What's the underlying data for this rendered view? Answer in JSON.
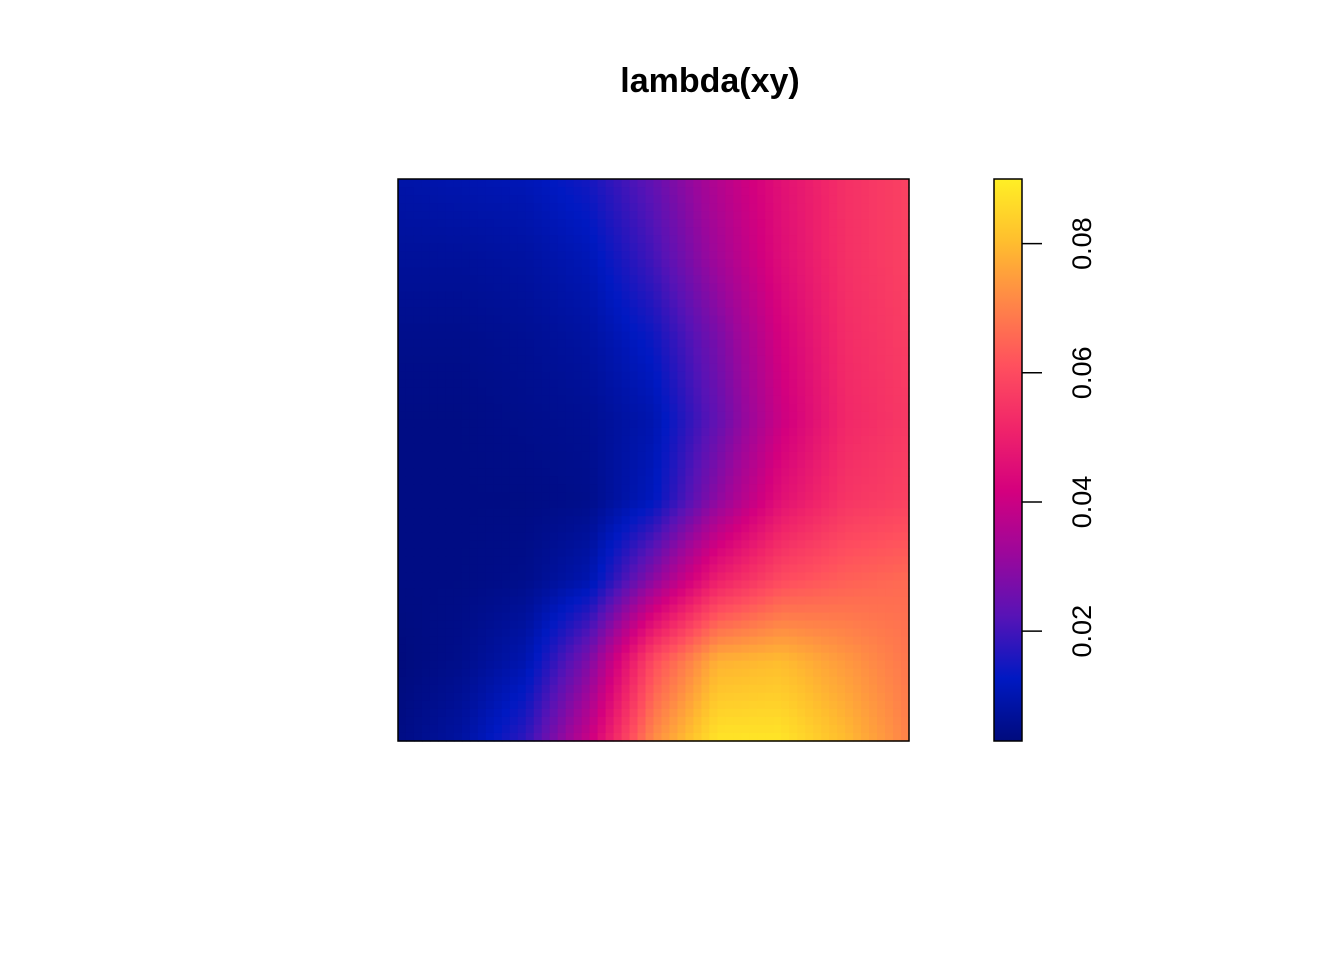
{
  "chart_data": {
    "type": "heatmap",
    "title": "lambda(xy)",
    "xlabel": "",
    "ylabel": "",
    "axes_shown": false,
    "colorbar": {
      "position": "right",
      "min": 0.003,
      "max": 0.09,
      "ticks": [
        0.02,
        0.04,
        0.06,
        0.08
      ],
      "tick_labels": [
        "0.02",
        "0.04",
        "0.06",
        "0.08"
      ],
      "orientation": "vertical-labels-rotated",
      "palette": [
        "#000B7D",
        "#0019C2",
        "#5713B6",
        "#9C079B",
        "#D4007E",
        "#F0246A",
        "#FF4F5E",
        "#FF8548",
        "#FFBE2E",
        "#FFEF25"
      ]
    },
    "grid_rows_top_to_bottom": [
      [
        0.009,
        0.01,
        0.011,
        0.015,
        0.024,
        0.036,
        0.046,
        0.054,
        0.058
      ],
      [
        0.007,
        0.007,
        0.008,
        0.011,
        0.02,
        0.033,
        0.045,
        0.054,
        0.058
      ],
      [
        0.005,
        0.005,
        0.006,
        0.008,
        0.014,
        0.027,
        0.042,
        0.053,
        0.057
      ],
      [
        0.004,
        0.004,
        0.005,
        0.006,
        0.01,
        0.024,
        0.04,
        0.052,
        0.056
      ],
      [
        0.004,
        0.004,
        0.004,
        0.005,
        0.012,
        0.03,
        0.046,
        0.055,
        0.058
      ],
      [
        0.004,
        0.004,
        0.005,
        0.01,
        0.03,
        0.05,
        0.06,
        0.064,
        0.066
      ],
      [
        0.003,
        0.005,
        0.01,
        0.028,
        0.06,
        0.078,
        0.08,
        0.074,
        0.068
      ],
      [
        0.004,
        0.008,
        0.018,
        0.04,
        0.072,
        0.088,
        0.088,
        0.08,
        0.07
      ]
    ]
  }
}
